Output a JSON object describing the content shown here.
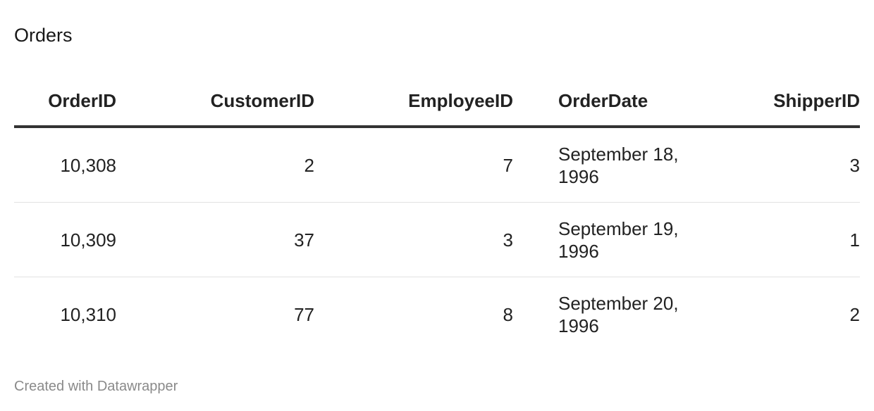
{
  "title": "Orders",
  "chart_data": {
    "type": "table",
    "title": "Orders",
    "columns": [
      "OrderID",
      "CustomerID",
      "EmployeeID",
      "OrderDate",
      "ShipperID"
    ],
    "rows": [
      [
        "10,308",
        "2",
        "7",
        "September 18, 1996",
        "3"
      ],
      [
        "10,309",
        "37",
        "3",
        "September 19, 1996",
        "1"
      ],
      [
        "10,310",
        "77",
        "8",
        "September 20, 1996",
        "2"
      ]
    ]
  },
  "footer": "Created with Datawrapper"
}
